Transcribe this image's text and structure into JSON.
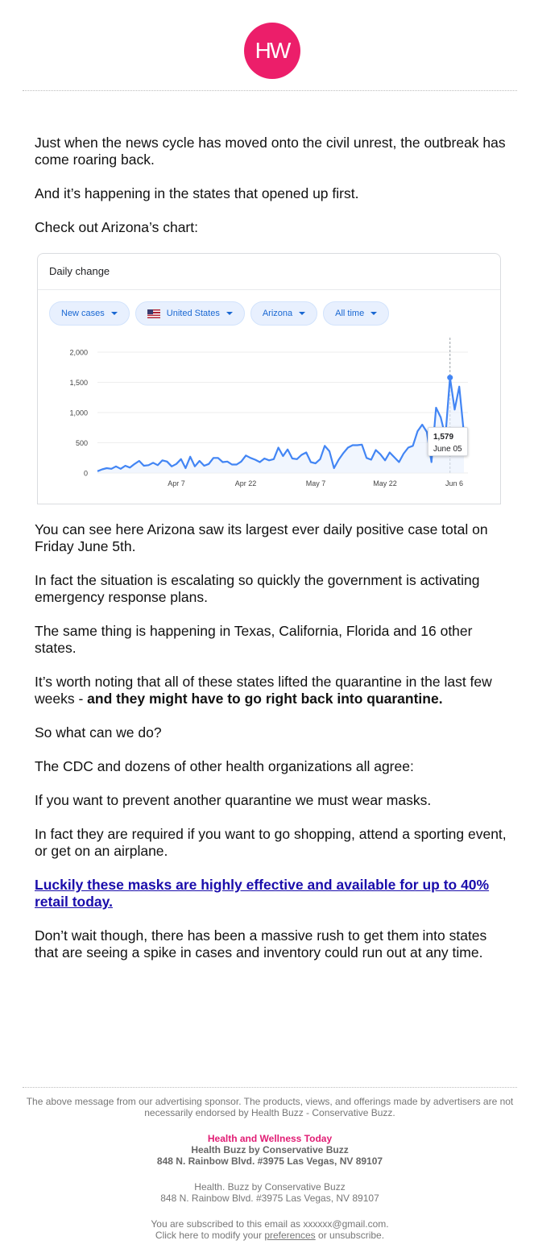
{
  "brand": {
    "logo_text": "HW",
    "accent": "#ec1e6a"
  },
  "intro": [
    "Just when the news cycle has moved onto the civil unrest, the outbreak has come roaring back.",
    "And it’s happening in the states that opened up first.",
    "Check out Arizona’s chart:"
  ],
  "chart_card": {
    "header": "Daily change",
    "chips": [
      {
        "label": "New cases",
        "icon": "caret-down-icon"
      },
      {
        "label": "United States",
        "icon": "us-flag-icon"
      },
      {
        "label": "Arizona",
        "icon": "caret-down-icon"
      },
      {
        "label": "All time",
        "icon": "caret-down-icon"
      }
    ],
    "tooltip": {
      "value": "1,579",
      "date": "June 05"
    }
  },
  "chart_data": {
    "type": "line",
    "x_ticks": [
      "Apr 7",
      "Apr 22",
      "May 7",
      "May 22",
      "Jun 6"
    ],
    "y_ticks": [
      "0",
      "500",
      "1,000",
      "1,500",
      "2,000"
    ],
    "ylim": [
      0,
      2000
    ],
    "grid": true,
    "series": [
      {
        "color": "#4285f4",
        "values": [
          30,
          60,
          80,
          70,
          110,
          70,
          120,
          90,
          150,
          200,
          120,
          130,
          170,
          130,
          210,
          190,
          110,
          150,
          230,
          80,
          270,
          110,
          200,
          120,
          150,
          250,
          250,
          180,
          190,
          140,
          140,
          190,
          290,
          250,
          220,
          180,
          240,
          210,
          230,
          420,
          280,
          390,
          240,
          230,
          300,
          340,
          180,
          160,
          230,
          450,
          360,
          80,
          220,
          330,
          420,
          460,
          460,
          470,
          250,
          220,
          380,
          310,
          210,
          340,
          260,
          180,
          320,
          420,
          450,
          690,
          800,
          680,
          180,
          1080,
          920,
          600,
          1579,
          1050,
          1430,
          650
        ]
      }
    ]
  },
  "body": [
    "You can see here Arizona saw its largest ever daily positive case total on Friday June 5th.",
    "In fact the situation is escalating so quickly the government is activating emergency response plans.",
    "The same thing is happening in Texas, California, Florida and 16 other states."
  ],
  "quarantine": {
    "text": "It’s worth noting that all of these states lifted the quarantine in the last few weeks - ",
    "emphasis": "and they might have to go right back into quarantine."
  },
  "body2": [
    "So what can we do?",
    "The CDC and dozens of other health organizations all agree:",
    "If you want to prevent another quarantine we must wear masks.",
    "In fact they are required if you want to go shopping, attend a sporting event, or get on an airplane."
  ],
  "cta_link": "Luckily these masks are highly effective and available for up to 40% retail today.",
  "closing": "Don’t wait though, there has been a massive rush to get them into states that are seeing a spike in cases and inventory could run out at any time.",
  "footer": {
    "disclaimer": "The above message from our advertising sponsor. The products, views, and offerings made by advertisers are not necessarily endorsed by Health Buzz - Conservative Buzz.",
    "brand_line": "Health and Wellness Today",
    "company_bold": "Health Buzz by Conservative Buzz",
    "address_bold": "848 N. Rainbow Blvd. #3975 Las Vegas, NV 89107",
    "company": "Health. Buzz by Conservative Buzz",
    "address": "848 N. Rainbow Blvd. #3975 Las Vegas, NV 89107",
    "subscribed": "You are subscribed to this email as xxxxxx@gmail.com.",
    "modify_prefix": "Click here to modify your ",
    "preferences_link": "preferences",
    "modify_suffix": " or unsubscribe."
  }
}
